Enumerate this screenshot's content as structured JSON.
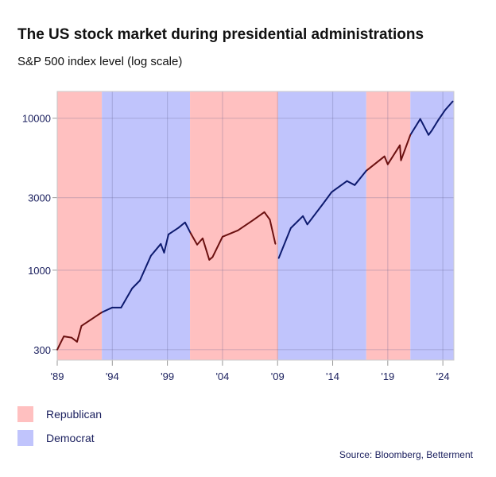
{
  "chart_data": {
    "type": "line",
    "title": "The US stock market during presidential administrations",
    "subtitle": "S&P 500 index level (log scale)",
    "yscale": "log",
    "ylim": [
      256,
      15000
    ],
    "xlim": [
      1989,
      2025
    ],
    "yticks": [
      300,
      1000,
      3000,
      10000
    ],
    "ytick_labels": [
      "300",
      "1000",
      "3000",
      "10000"
    ],
    "xticks": [
      1989,
      1994,
      1999,
      2004,
      2009,
      2014,
      2019,
      2024
    ],
    "xtick_labels": [
      "'89",
      "'94",
      "'99",
      "'04",
      "'09",
      "'14",
      "'19",
      "'24"
    ],
    "grid": true,
    "legend_placement": "bottom-left",
    "colors": {
      "Republican_band": "#ffc0c0",
      "Democrat_band": "#c0c4fc",
      "Republican_line": "#6b1010",
      "Democrat_line": "#0d1a6e"
    },
    "legend": [
      {
        "label": "Republican",
        "color": "#ffc0c0"
      },
      {
        "label": "Democrat",
        "color": "#c0c4fc"
      }
    ],
    "administrations": [
      {
        "party": "Republican",
        "start": 1989.0,
        "end": 1993.05
      },
      {
        "party": "Democrat",
        "start": 1993.05,
        "end": 2001.05
      },
      {
        "party": "Republican",
        "start": 2001.05,
        "end": 2009.05
      },
      {
        "party": "Democrat",
        "start": 2009.05,
        "end": 2017.05
      },
      {
        "party": "Republican",
        "start": 2017.05,
        "end": 2021.05
      },
      {
        "party": "Democrat",
        "start": 2021.05,
        "end": 2025.0
      }
    ],
    "x": [
      1989.0,
      1989.6,
      1990.3,
      1990.8,
      1991.2,
      1992.0,
      1993.05,
      1994.0,
      1994.8,
      1995.8,
      1996.5,
      1997.5,
      1998.4,
      1998.7,
      1999.1,
      2000.0,
      2000.6,
      2001.05,
      2001.7,
      2002.2,
      2002.8,
      2003.1,
      2004.0,
      2005.4,
      2006.8,
      2007.8,
      2008.3,
      2008.8,
      2009.1,
      2010.2,
      2011.3,
      2011.7,
      2013.1,
      2013.9,
      2015.3,
      2016.0,
      2017.05,
      2018.7,
      2019.0,
      2020.1,
      2020.2,
      2021.05,
      2021.95,
      2022.7,
      2023.0,
      2023.6,
      2024.2,
      2024.9
    ],
    "values": [
      300,
      367,
      360,
      338,
      430,
      470,
      528,
      568,
      568,
      759,
      855,
      1243,
      1489,
      1304,
      1721,
      1900,
      2062,
      1783,
      1472,
      1620,
      1170,
      1220,
      1660,
      1828,
      2140,
      2410,
      2150,
      1489,
      1200,
      1893,
      2270,
      2000,
      2720,
      3260,
      3860,
      3630,
      4510,
      5610,
      4970,
      6640,
      5280,
      7760,
      9880,
      7760,
      8300,
      9760,
      11300,
      12900
    ]
  },
  "source": "Source: Bloomberg, Betterment"
}
